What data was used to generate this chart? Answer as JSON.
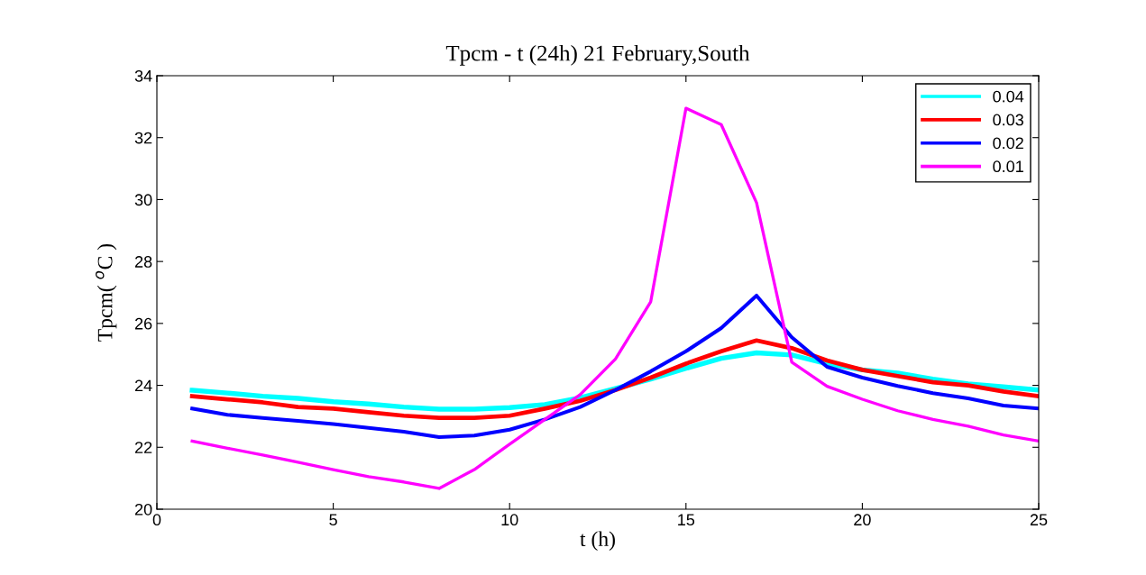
{
  "chart_data": {
    "type": "line",
    "title": "Tpcm - t (24h) 21 February,South",
    "xlabel": "t (h)",
    "ylabel": "Tpcm( $^{o}$C )",
    "x": [
      1,
      2,
      3,
      4,
      5,
      6,
      7,
      8,
      9,
      10,
      11,
      12,
      13,
      14,
      15,
      16,
      17,
      18,
      19,
      20,
      21,
      22,
      23,
      24,
      25
    ],
    "series": [
      {
        "name": "0.04",
        "color": "#00ffff",
        "values": [
          23.84,
          23.75,
          23.65,
          23.58,
          23.47,
          23.4,
          23.3,
          23.23,
          23.23,
          23.28,
          23.38,
          23.6,
          23.9,
          24.2,
          24.55,
          24.87,
          25.05,
          24.98,
          24.7,
          24.5,
          24.4,
          24.2,
          24.05,
          23.95,
          23.85
        ]
      },
      {
        "name": "0.03",
        "color": "#ff0000",
        "values": [
          23.65,
          23.55,
          23.45,
          23.3,
          23.25,
          23.13,
          23.02,
          22.95,
          22.95,
          23.02,
          23.25,
          23.5,
          23.85,
          24.25,
          24.7,
          25.1,
          25.45,
          25.2,
          24.8,
          24.5,
          24.3,
          24.1,
          24.0,
          23.8,
          23.65
        ]
      },
      {
        "name": "0.02",
        "color": "#0000ff",
        "values": [
          23.25,
          23.05,
          22.95,
          22.85,
          22.75,
          22.63,
          22.5,
          22.33,
          22.38,
          22.57,
          22.9,
          23.3,
          23.85,
          24.45,
          25.1,
          25.85,
          26.9,
          25.55,
          24.6,
          24.25,
          23.98,
          23.75,
          23.58,
          23.35,
          23.25
        ]
      },
      {
        "name": "0.01",
        "color": "#ff00ff",
        "values": [
          22.2,
          21.97,
          21.75,
          21.52,
          21.28,
          21.05,
          20.88,
          20.67,
          21.28,
          22.1,
          22.9,
          23.7,
          24.85,
          26.7,
          32.95,
          32.42,
          29.9,
          24.75,
          23.97,
          23.55,
          23.18,
          22.9,
          22.68,
          22.4,
          22.2
        ]
      }
    ],
    "xlim": [
      0,
      25
    ],
    "xticks": [
      0,
      5,
      10,
      15,
      20,
      25
    ],
    "ylim": [
      20,
      34
    ],
    "yticks": [
      20,
      22,
      24,
      26,
      28,
      30,
      32,
      34
    ],
    "legend": "top right",
    "grid": false,
    "line_style": "solid",
    "marker": "none"
  }
}
